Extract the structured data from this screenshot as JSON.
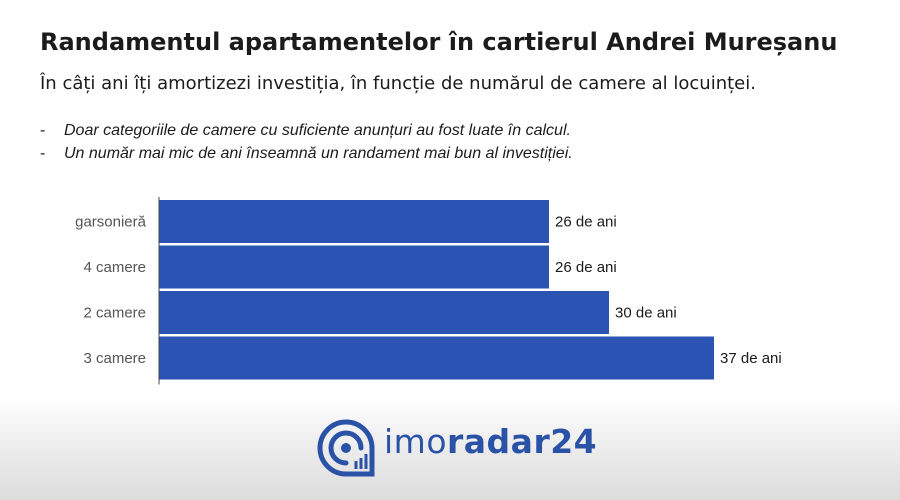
{
  "title": "Randamentul apartamentelor în cartierul Andrei Mureșanu",
  "subtitle": "În câți ani îți amortizezi investiția, în funcție de numărul de camere al locuinței.",
  "notes": [
    {
      "dash": "-",
      "text": "Doar categoriile de camere cu suficiente anunțuri au fost luate în calcul."
    },
    {
      "dash": "-",
      "text": "Un număr mai mic de ani înseamnă un randament mai bun al investiției."
    }
  ],
  "chart_data": {
    "type": "bar",
    "orientation": "horizontal",
    "categories": [
      "garsonieră",
      "4 camere",
      "2 camere",
      "3 camere"
    ],
    "values": [
      26,
      26,
      30,
      37
    ],
    "data_labels": [
      "26 de ani",
      "26 de ani",
      "30 de ani",
      "37 de ani"
    ],
    "bar_color": "#2b53b3",
    "xlim": [
      0,
      40
    ],
    "grid": false
  },
  "brand": {
    "name_light": "imo",
    "name_bold": "radar24",
    "color": "#2a52a6",
    "icon": "radar-logo-icon"
  }
}
